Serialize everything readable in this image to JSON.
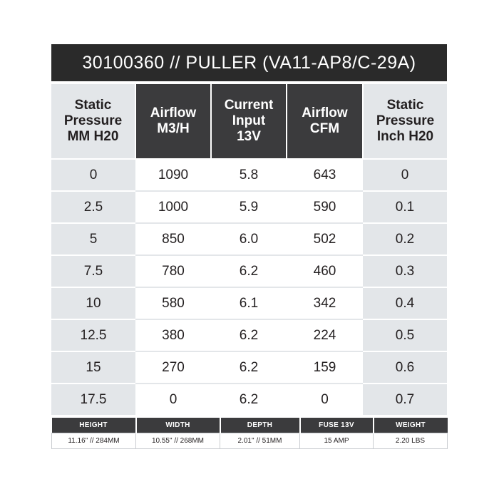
{
  "title": "30100360 // PULLER (VA11-AP8/C-29A)",
  "columns": [
    {
      "lines": [
        "Static",
        "Pressure",
        "MM H20"
      ]
    },
    {
      "lines": [
        "Airflow",
        "M3/H"
      ]
    },
    {
      "lines": [
        "Current",
        "Input",
        "13V"
      ]
    },
    {
      "lines": [
        "Airflow",
        "CFM"
      ]
    },
    {
      "lines": [
        "Static",
        "Pressure",
        "Inch H20"
      ]
    }
  ],
  "rows": [
    [
      "0",
      "1090",
      "5.8",
      "643",
      "0"
    ],
    [
      "2.5",
      "1000",
      "5.9",
      "590",
      "0.1"
    ],
    [
      "5",
      "850",
      "6.0",
      "502",
      "0.2"
    ],
    [
      "7.5",
      "780",
      "6.2",
      "460",
      "0.3"
    ],
    [
      "10",
      "580",
      "6.1",
      "342",
      "0.4"
    ],
    [
      "12.5",
      "380",
      "6.2",
      "224",
      "0.5"
    ],
    [
      "15",
      "270",
      "6.2",
      "159",
      "0.6"
    ],
    [
      "17.5",
      "0",
      "6.2",
      "0",
      "0.7"
    ]
  ],
  "dimensions": {
    "headers": [
      "HEIGHT",
      "WIDTH",
      "DEPTH",
      "FUSE 13V",
      "WEIGHT"
    ],
    "values": [
      "11.16\" // 284MM",
      "10.55\" // 268MM",
      "2.01\" // 51MM",
      "15 AMP",
      "2.20 LBS"
    ]
  },
  "colors": {
    "title_bg": "#2a2a2a",
    "dark_header_bg": "#3b3b3d",
    "light_column_bg": "#e3e6e9",
    "text": "#231f20"
  }
}
